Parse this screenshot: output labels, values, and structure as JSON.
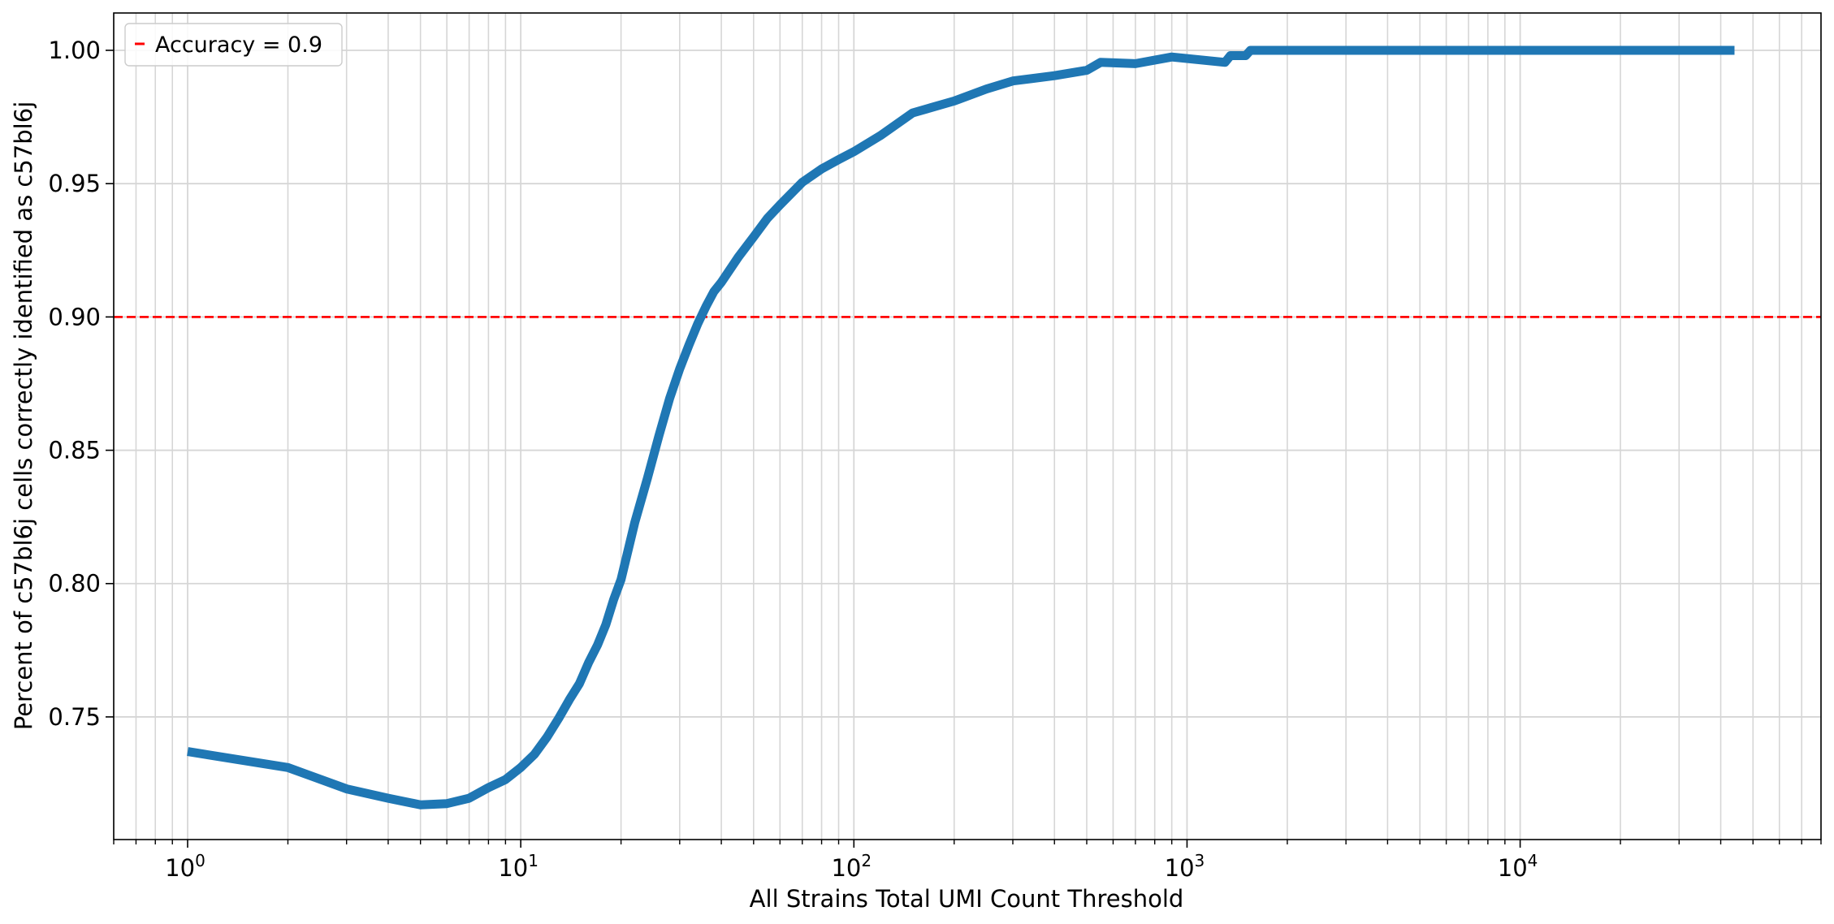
{
  "chart_data": {
    "type": "line",
    "xlabel": "All Strains Total UMI Count Threshold",
    "ylabel": "Percent of c57bl6j cells correctly identified as c57bl6j",
    "x_scale": "log",
    "xlim": [
      0.6,
      80000
    ],
    "ylim": [
      0.704,
      1.014
    ],
    "grid": true,
    "legend_position": "top-left",
    "x_ticks": [
      {
        "value": 1,
        "base": "10",
        "exp": "0"
      },
      {
        "value": 10,
        "base": "10",
        "exp": "1"
      },
      {
        "value": 100,
        "base": "10",
        "exp": "2"
      },
      {
        "value": 1000,
        "base": "10",
        "exp": "3"
      },
      {
        "value": 10000,
        "base": "10",
        "exp": "4"
      }
    ],
    "y_ticks": [
      {
        "value": 0.75,
        "label": "0.75"
      },
      {
        "value": 0.8,
        "label": "0.80"
      },
      {
        "value": 0.85,
        "label": "0.85"
      },
      {
        "value": 0.9,
        "label": "0.90"
      },
      {
        "value": 0.95,
        "label": "0.95"
      },
      {
        "value": 1.0,
        "label": "1.00"
      }
    ],
    "series": [
      {
        "color": "#1f77b4",
        "x": [
          1,
          2,
          3,
          4,
          5,
          6,
          7,
          8,
          9,
          10,
          11,
          12,
          13,
          14,
          15,
          16,
          17,
          18,
          19,
          20,
          22,
          24,
          26,
          28,
          30,
          32,
          34,
          36,
          38,
          40,
          45,
          50,
          55,
          60,
          70,
          80,
          90,
          100,
          120,
          150,
          200,
          250,
          300,
          400,
          500,
          550,
          700,
          900,
          1300,
          1350,
          1500,
          1550,
          3000,
          10000,
          44000
        ],
        "y": [
          0.737,
          0.731,
          0.723,
          0.7195,
          0.717,
          0.7175,
          0.7195,
          0.7235,
          0.7265,
          0.731,
          0.736,
          0.7425,
          0.7495,
          0.7565,
          0.7625,
          0.7705,
          0.777,
          0.7845,
          0.794,
          0.8015,
          0.823,
          0.8395,
          0.8555,
          0.8695,
          0.8805,
          0.8895,
          0.8975,
          0.904,
          0.9095,
          0.913,
          0.9225,
          0.93,
          0.937,
          0.942,
          0.9505,
          0.9555,
          0.959,
          0.962,
          0.968,
          0.9765,
          0.981,
          0.9855,
          0.9885,
          0.9905,
          0.9925,
          0.9955,
          0.995,
          0.9975,
          0.9955,
          0.998,
          0.998,
          1.0,
          1.0,
          1.0,
          1.0
        ]
      }
    ],
    "reference_line": {
      "y": 0.9,
      "color": "#ff0000",
      "style": "dashed",
      "legend_label": "Accuracy = 0.9"
    }
  }
}
